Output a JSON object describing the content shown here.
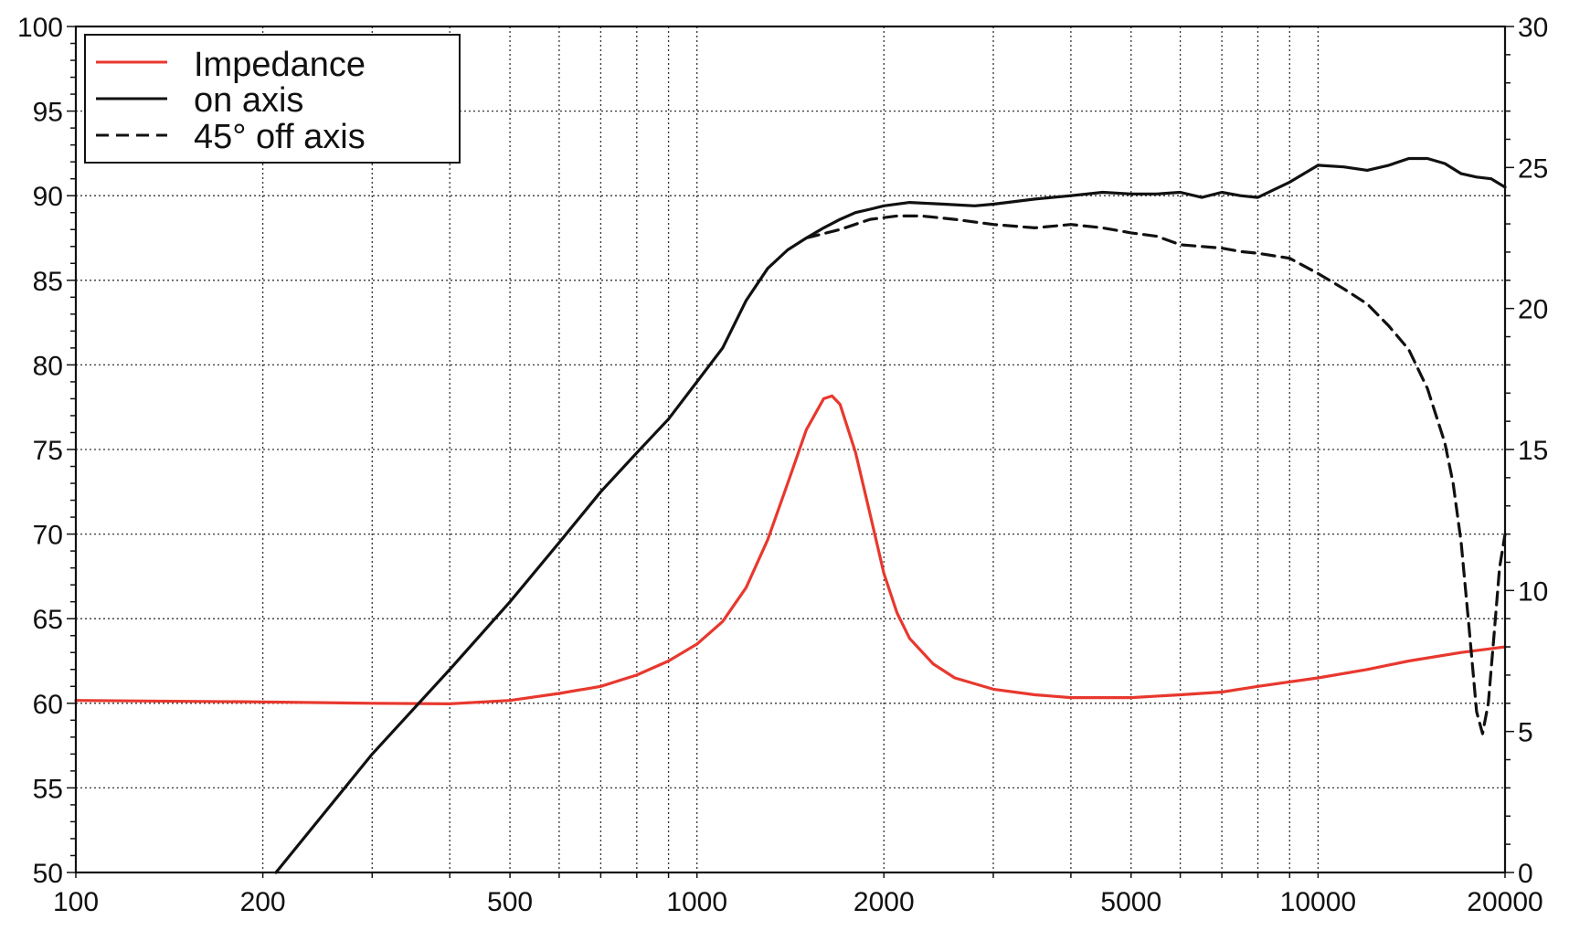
{
  "chart_data": {
    "type": "line",
    "title": "",
    "xlabel": "",
    "ylabel": "",
    "y2label": "",
    "x_scale": "log",
    "xlim": [
      100,
      20000
    ],
    "ylim": [
      50,
      100
    ],
    "y2lim": [
      0,
      30
    ],
    "grid": true,
    "legend_position": "top-left",
    "x_ticks": [
      {
        "value": 100,
        "label": "100"
      },
      {
        "value": 200,
        "label": "200"
      },
      {
        "value": 500,
        "label": "500"
      },
      {
        "value": 1000,
        "label": "1000"
      },
      {
        "value": 2000,
        "label": "2000"
      },
      {
        "value": 5000,
        "label": "5000"
      },
      {
        "value": 10000,
        "label": "10000"
      },
      {
        "value": 20000,
        "label": "20000"
      }
    ],
    "y_ticks": [
      "50",
      "55",
      "60",
      "65",
      "70",
      "75",
      "80",
      "85",
      "90",
      "95",
      "100"
    ],
    "y2_ticks": [
      "0",
      "5",
      "10",
      "15",
      "20",
      "25",
      "30"
    ],
    "series": [
      {
        "name": "Impedance",
        "axis": "right",
        "color": "#e8382e",
        "style": "solid",
        "x": [
          100,
          200,
          300,
          400,
          500,
          600,
          700,
          800,
          900,
          1000,
          1100,
          1200,
          1300,
          1400,
          1500,
          1600,
          1650,
          1700,
          1800,
          1900,
          2000,
          2100,
          2200,
          2400,
          2600,
          3000,
          3500,
          4000,
          4500,
          5000,
          6000,
          7000,
          8000,
          10000,
          12000,
          14000,
          17000,
          20000
        ],
        "y": [
          6.1,
          6.05,
          6.0,
          5.98,
          6.1,
          6.35,
          6.6,
          7.0,
          7.5,
          8.1,
          8.9,
          10.1,
          11.8,
          13.8,
          15.7,
          16.8,
          16.9,
          16.6,
          14.9,
          12.7,
          10.6,
          9.2,
          8.3,
          7.4,
          6.9,
          6.5,
          6.3,
          6.2,
          6.2,
          6.2,
          6.3,
          6.4,
          6.6,
          6.9,
          7.2,
          7.5,
          7.8,
          8.0
        ]
      },
      {
        "name": "on axis",
        "axis": "left",
        "color": "#111111",
        "style": "solid",
        "x": [
          210,
          300,
          400,
          500,
          600,
          700,
          800,
          900,
          1000,
          1100,
          1200,
          1300,
          1400,
          1500,
          1600,
          1700,
          1800,
          1900,
          2000,
          2200,
          2500,
          2800,
          3000,
          3500,
          4000,
          4500,
          5000,
          5500,
          6000,
          6500,
          7000,
          7500,
          8000,
          9000,
          10000,
          11000,
          12000,
          13000,
          14000,
          15000,
          16000,
          17000,
          18000,
          19000,
          20000
        ],
        "y": [
          50,
          57,
          62,
          66,
          69.5,
          72.5,
          74.8,
          76.8,
          79,
          81,
          83.8,
          85.7,
          86.8,
          87.5,
          88.1,
          88.6,
          89,
          89.2,
          89.4,
          89.6,
          89.5,
          89.4,
          89.5,
          89.8,
          90.0,
          90.2,
          90.1,
          90.1,
          90.2,
          89.9,
          90.2,
          90.0,
          89.9,
          90.8,
          91.8,
          91.7,
          91.5,
          91.8,
          92.2,
          92.2,
          91.9,
          91.3,
          91.1,
          91.0,
          90.5
        ]
      },
      {
        "name": "45° off axis",
        "axis": "left",
        "color": "#111111",
        "style": "dashed",
        "x": [
          1500,
          1700,
          1900,
          2100,
          2300,
          2600,
          3000,
          3500,
          4000,
          4500,
          5000,
          5500,
          6000,
          6500,
          7000,
          7500,
          8000,
          9000,
          10000,
          11000,
          12000,
          13000,
          14000,
          15000,
          16000,
          16500,
          17000,
          17500,
          18000,
          18400,
          18800,
          19200,
          19600,
          20000
        ],
        "y": [
          87.5,
          88.0,
          88.6,
          88.8,
          88.8,
          88.6,
          88.3,
          88.1,
          88.3,
          88.1,
          87.8,
          87.6,
          87.1,
          87.0,
          86.9,
          86.7,
          86.6,
          86.3,
          85.4,
          84.5,
          83.6,
          82.3,
          80.9,
          78.6,
          75.4,
          73.0,
          69.5,
          64.5,
          59.5,
          58.2,
          60.0,
          64.0,
          68.0,
          70.0
        ]
      }
    ]
  }
}
